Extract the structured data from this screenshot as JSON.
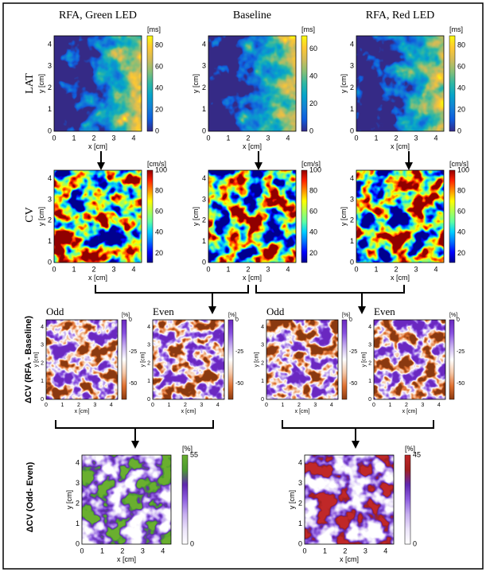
{
  "columns": [
    "RFA, Green LED",
    "Baseline",
    "RFA, Red LED"
  ],
  "rows": [
    "LAT",
    "CV",
    "ΔCV (RFA - Baseline)",
    "ΔCV (Odd- Even)"
  ],
  "axis": {
    "x_label": "x [cm]",
    "y_label": "y [cm]",
    "ticks": [
      "0",
      "1",
      "2",
      "3",
      "4"
    ]
  },
  "lat_colorbars": [
    {
      "unit": "[ms]",
      "ticks": [
        "0",
        "20",
        "40",
        "60",
        "80"
      ]
    },
    {
      "unit": "[ms]",
      "ticks": [
        "0",
        "20",
        "40",
        "60"
      ]
    },
    {
      "unit": "[ms]",
      "ticks": [
        "0",
        "20",
        "40",
        "60",
        "80"
      ]
    }
  ],
  "cv_colorbar": {
    "unit": "[cm/s]",
    "ticks": [
      "20",
      "40",
      "60",
      "80",
      "100"
    ]
  },
  "delta_panels": [
    "Odd",
    "Even",
    "Odd",
    "Even"
  ],
  "delta_colorbar": {
    "unit": "[%]",
    "ticks": [
      "0",
      "-25",
      "-50"
    ]
  },
  "odd_even_colorbars": [
    {
      "unit": "[%]",
      "ticks": [
        "55",
        "0"
      ]
    },
    {
      "unit": "[%]",
      "ticks": [
        "45",
        "0"
      ]
    }
  ]
}
